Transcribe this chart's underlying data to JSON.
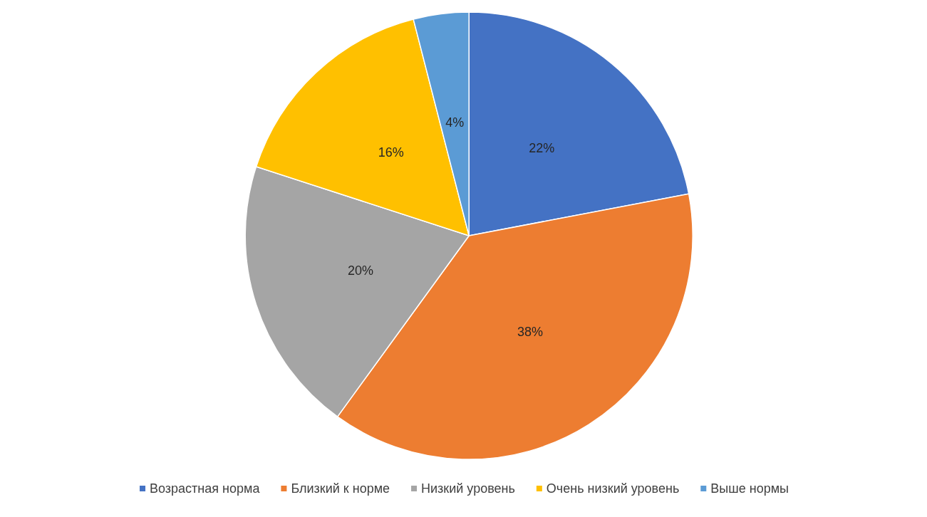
{
  "chart_data": {
    "type": "pie",
    "categories": [
      "Возрастная норма",
      "Близкий к норме",
      "Низкий уровень",
      "Очень низкий уровень",
      "Выше нормы"
    ],
    "values": [
      22,
      38,
      20,
      16,
      4
    ],
    "colors": [
      "#4472c4",
      "#ed7d31",
      "#a5a5a5",
      "#ffc000",
      "#5b9bd5"
    ],
    "value_labels": [
      "22%",
      "38%",
      "20%",
      "16%",
      "4%"
    ],
    "legend": "bottom"
  }
}
